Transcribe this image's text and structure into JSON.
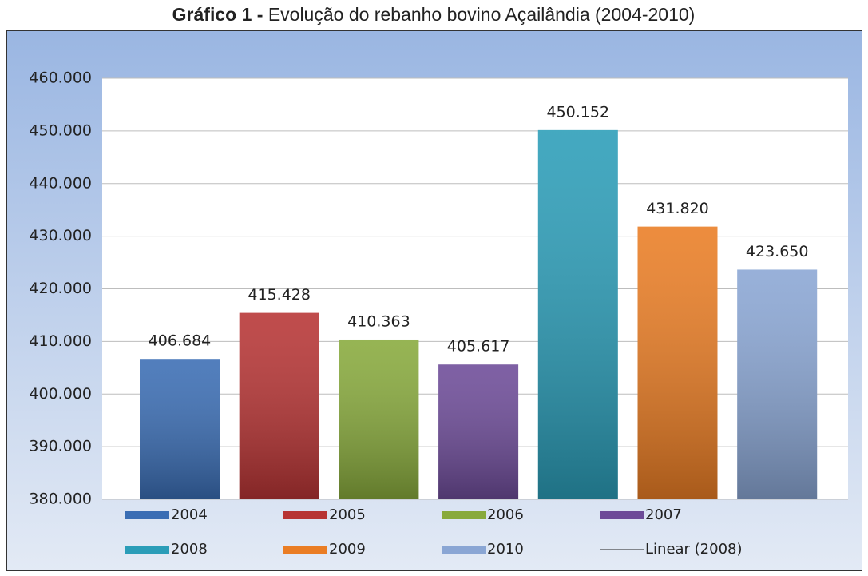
{
  "chart_data": {
    "type": "bar",
    "title_label": "Gráfico 1 -",
    "title": "Evolução do rebanho bovino Açailândia (2004-2010)",
    "categories": [
      "2004",
      "2005",
      "2006",
      "2007",
      "2008",
      "2009",
      "2010"
    ],
    "values": [
      406684,
      415428,
      410363,
      405617,
      450152,
      431820,
      423650
    ],
    "value_labels": [
      "406.684",
      "415.428",
      "410.363",
      "405.617",
      "450.152",
      "431.820",
      "423.650"
    ],
    "colors": [
      "#3a6db4",
      "#b73434",
      "#88aa3c",
      "#6d4b98",
      "#2b9db8",
      "#ea7d24",
      "#8aa6d4"
    ],
    "trendline_label": "Linear (2008)",
    "ylim": [
      380000,
      460000
    ],
    "yticks": [
      {
        "value": 380000,
        "label": "380.000"
      },
      {
        "value": 390000,
        "label": "390.000"
      },
      {
        "value": 400000,
        "label": "400.000"
      },
      {
        "value": 410000,
        "label": "410.000"
      },
      {
        "value": 420000,
        "label": "420.000"
      },
      {
        "value": 430000,
        "label": "430.000"
      },
      {
        "value": 440000,
        "label": "440.000"
      },
      {
        "value": 450000,
        "label": "450.000"
      },
      {
        "value": 460000,
        "label": "460.000"
      }
    ],
    "grid": true,
    "legend": "bottom"
  }
}
